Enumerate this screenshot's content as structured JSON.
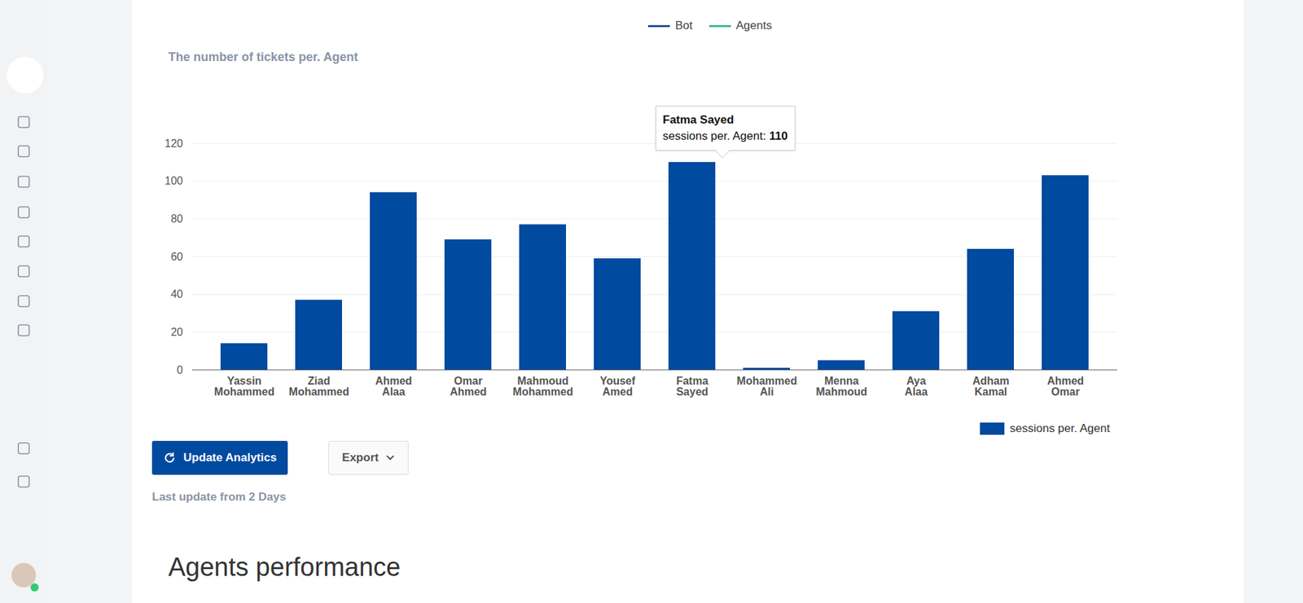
{
  "chart_data": {
    "type": "bar",
    "title": "The number of tickets per. Agent",
    "categories": [
      "Yassin Mohammed",
      "Ziad Mohammed",
      "Ahmed Alaa",
      "Omar Ahmed",
      "Mahmoud Mohammed",
      "Yousef Amed",
      "Fatma Sayed",
      "Mohammed Ali",
      "Menna Mahmoud",
      "Aya Alaa",
      "Adham Kamal",
      "Ahmed Omar"
    ],
    "series": [
      {
        "name": "sessions per. Agent",
        "color": "#004a9f",
        "values": [
          14,
          37,
          94,
          69,
          77,
          59,
          110,
          1,
          5,
          31,
          64,
          103
        ]
      }
    ],
    "ylim": [
      0,
      120
    ],
    "yticks": [
      0,
      20,
      40,
      60,
      80,
      100,
      120
    ],
    "grid": true,
    "legend": "bottom-right",
    "annotations": [
      {
        "category": "Fatma Sayed",
        "text": "sessions per. Agent:",
        "value": 110
      }
    ]
  },
  "page": {
    "previous_chart_legend": [
      {
        "name": "Bot",
        "color": "#1f4e9c"
      },
      {
        "name": "Agents",
        "color": "#3cb88a"
      }
    ],
    "buttons": [
      "Update Analytics",
      "Export"
    ],
    "last_update": "Last update from 2 Days",
    "section_title": "Agents performance"
  }
}
